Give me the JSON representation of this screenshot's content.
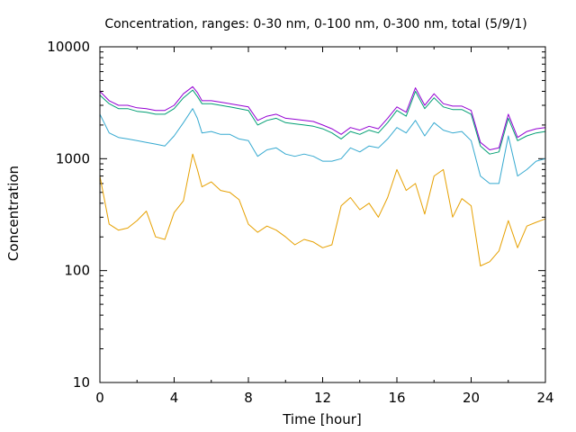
{
  "chart_data": {
    "type": "line",
    "title": "Concentration, ranges: 0-30 nm, 0-100 nm, 0-300 nm, total (5/9/1)",
    "xlabel": "Time [hour]",
    "ylabel": "Concentration",
    "xlim": [
      0,
      24
    ],
    "ylim": [
      10,
      10000
    ],
    "y_scale": "log",
    "grid": false,
    "x_ticks": [
      "0",
      "4",
      "8",
      "12",
      "16",
      "20",
      "24"
    ],
    "y_ticks": [
      "10",
      "100",
      "1000",
      "10000"
    ],
    "x": [
      0,
      0.5,
      1,
      1.5,
      2,
      2.5,
      3,
      3.5,
      4,
      4.5,
      5,
      5.25,
      5.5,
      6,
      6.5,
      7,
      7.5,
      8,
      8.5,
      9,
      9.5,
      10,
      10.5,
      11,
      11.5,
      12,
      12.5,
      13,
      13.5,
      14,
      14.5,
      15,
      15.5,
      16,
      16.5,
      17,
      17.5,
      18,
      18.5,
      19,
      19.5,
      20,
      20.5,
      21,
      21.5,
      22,
      22.5,
      23,
      23.5,
      24
    ],
    "series": [
      {
        "color": "#e6a000",
        "values": [
          700,
          260,
          230,
          240,
          280,
          340,
          200,
          190,
          330,
          420,
          1100,
          800,
          560,
          620,
          520,
          500,
          430,
          260,
          220,
          250,
          230,
          200,
          170,
          190,
          180,
          160,
          170,
          380,
          450,
          350,
          400,
          300,
          450,
          800,
          520,
          600,
          320,
          700,
          800,
          300,
          440,
          380,
          110,
          120,
          150,
          280,
          160,
          250,
          270,
          290
        ]
      },
      {
        "color": "#35a9d0",
        "values": [
          2500,
          1700,
          1550,
          1500,
          1450,
          1400,
          1350,
          1300,
          1600,
          2100,
          2800,
          2300,
          1700,
          1750,
          1650,
          1650,
          1500,
          1450,
          1050,
          1200,
          1250,
          1100,
          1050,
          1100,
          1050,
          950,
          950,
          1000,
          1250,
          1150,
          1300,
          1250,
          1500,
          1900,
          1700,
          2200,
          1600,
          2100,
          1800,
          1700,
          1750,
          1450,
          700,
          600,
          600,
          1600,
          700,
          800,
          950,
          1000
        ]
      },
      {
        "color": "#009e73",
        "values": [
          3700,
          3100,
          2800,
          2800,
          2650,
          2600,
          2500,
          2500,
          2800,
          3500,
          4100,
          3600,
          3100,
          3100,
          3000,
          2900,
          2800,
          2700,
          2000,
          2200,
          2300,
          2100,
          2050,
          2000,
          1950,
          1850,
          1700,
          1500,
          1750,
          1650,
          1800,
          1700,
          2100,
          2700,
          2400,
          4000,
          2800,
          3500,
          2900,
          2750,
          2750,
          2500,
          1300,
          1100,
          1150,
          2300,
          1450,
          1600,
          1700,
          1750
        ]
      },
      {
        "color": "#9400d3",
        "values": [
          4000,
          3300,
          3000,
          3000,
          2850,
          2800,
          2700,
          2700,
          3000,
          3800,
          4400,
          3900,
          3300,
          3300,
          3200,
          3100,
          3000,
          2900,
          2200,
          2400,
          2500,
          2300,
          2250,
          2200,
          2150,
          2000,
          1850,
          1650,
          1900,
          1800,
          1950,
          1850,
          2300,
          2900,
          2600,
          4300,
          3000,
          3800,
          3100,
          2950,
          2950,
          2700,
          1400,
          1200,
          1250,
          2500,
          1550,
          1750,
          1850,
          1900
        ]
      }
    ]
  }
}
